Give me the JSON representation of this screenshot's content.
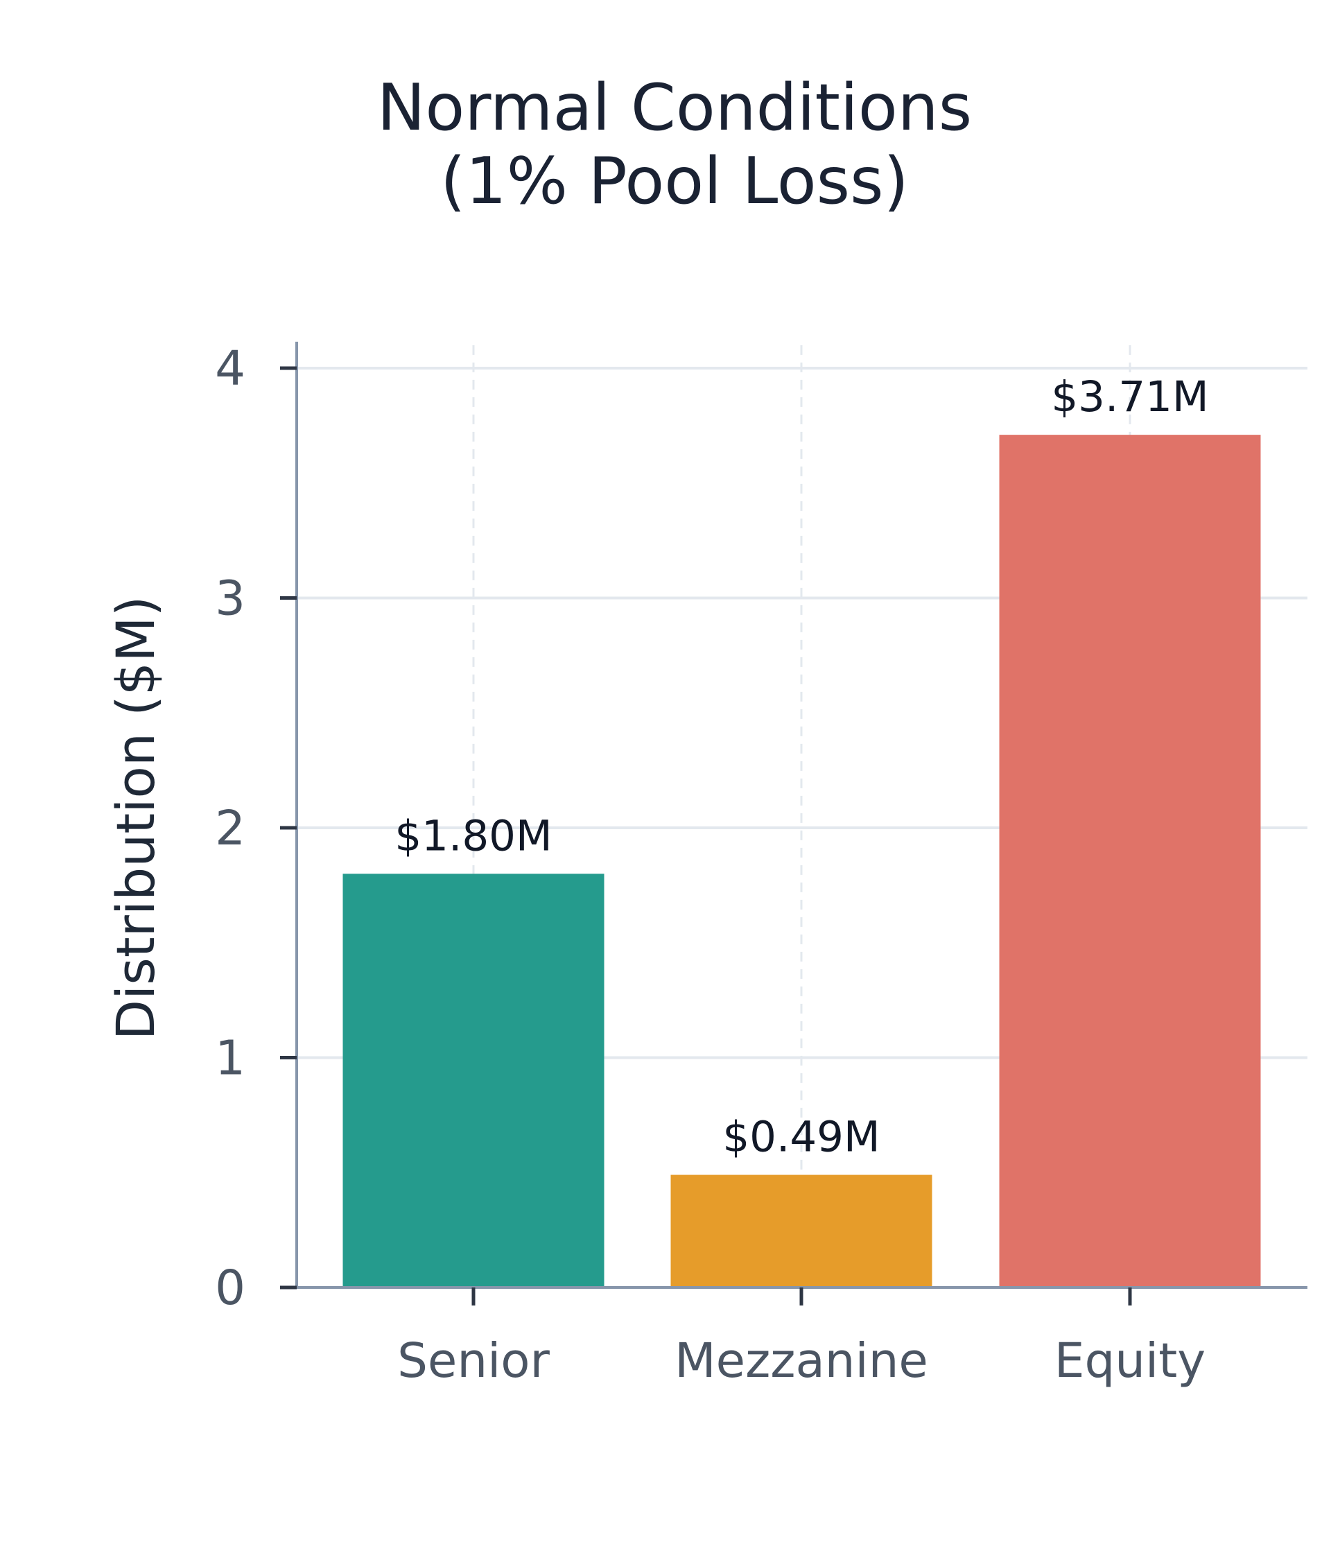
{
  "chart_data": {
    "type": "bar",
    "title_lines": [
      "Normal Conditions",
      "(1% Pool Loss)"
    ],
    "xlabel": "",
    "ylabel": "Distribution ($M)",
    "categories": [
      "Senior",
      "Mezzanine",
      "Equity"
    ],
    "values": [
      1.8,
      0.49,
      3.71
    ],
    "value_labels": [
      "$1.80M",
      "$0.49M",
      "$3.71M"
    ],
    "colors": [
      "#259b8d",
      "#e69c2a",
      "#e07368"
    ],
    "yticks": [
      0,
      1,
      2,
      3,
      4
    ],
    "ylim": [
      0,
      4.1
    ],
    "grid": true,
    "legend": "none"
  }
}
